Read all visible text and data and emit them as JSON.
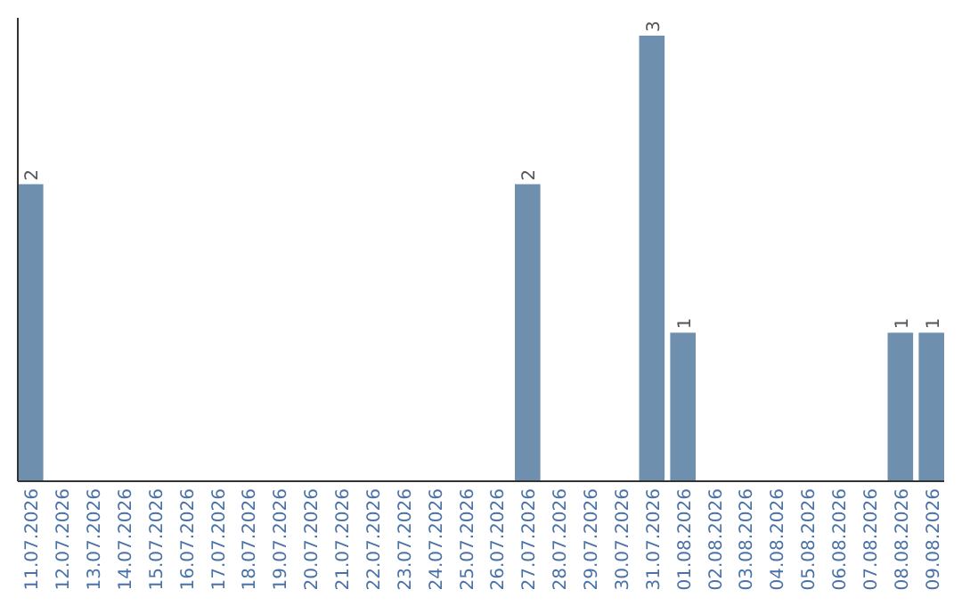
{
  "chart_data": {
    "type": "bar",
    "categories": [
      "11.07.2026",
      "12.07.2026",
      "13.07.2026",
      "14.07.2026",
      "15.07.2026",
      "16.07.2026",
      "17.07.2026",
      "18.07.2026",
      "19.07.2026",
      "20.07.2026",
      "21.07.2026",
      "22.07.2026",
      "23.07.2026",
      "24.07.2026",
      "25.07.2026",
      "26.07.2026",
      "27.07.2026",
      "28.07.2026",
      "29.07.2026",
      "30.07.2026",
      "31.07.2026",
      "01.08.2026",
      "02.08.2026",
      "03.08.2026",
      "04.08.2026",
      "05.08.2026",
      "06.08.2026",
      "07.08.2026",
      "08.08.2026",
      "09.08.2026"
    ],
    "values": [
      2,
      0,
      0,
      0,
      0,
      0,
      0,
      0,
      0,
      0,
      0,
      0,
      0,
      0,
      0,
      0,
      2,
      0,
      0,
      0,
      3,
      1,
      0,
      0,
      0,
      0,
      0,
      0,
      1,
      1
    ],
    "value_labels": [
      "2",
      null,
      null,
      null,
      null,
      null,
      null,
      null,
      null,
      null,
      null,
      null,
      null,
      null,
      null,
      null,
      "2",
      null,
      null,
      null,
      "3",
      "1",
      null,
      null,
      null,
      null,
      null,
      null,
      "1",
      "1"
    ],
    "color": "#6e8fae"
  }
}
